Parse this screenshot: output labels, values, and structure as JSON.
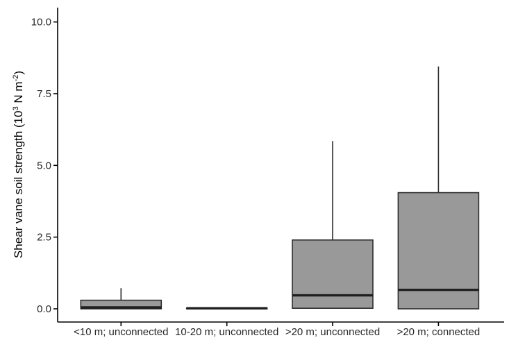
{
  "figure": {
    "background": "#ffffff"
  },
  "chart_data": {
    "type": "boxplot",
    "title": "",
    "xlabel": "",
    "ylabel_text": "Shear vane soil strength (10^3 N m^-2)",
    "ylabel_parts": [
      {
        "text": "Shear vane soil strength ("
      },
      {
        "text": "10"
      },
      {
        "text": "3",
        "sup": true
      },
      {
        "text": " N m"
      },
      {
        "text": "-2",
        "sup": true
      },
      {
        "text": ")"
      }
    ],
    "categories": [
      "<10 m; unconnected",
      "10-20 m; unconnected",
      ">20 m; unconnected",
      ">20 m; connected"
    ],
    "series": [
      {
        "category": "<10 m; unconnected",
        "whisker_low": 0,
        "q1": 0,
        "median": 0.05,
        "q3": 0.3,
        "whisker_high": 0.72
      },
      {
        "category": "10-20 m; unconnected",
        "whisker_low": 0,
        "q1": 0,
        "median": 0.02,
        "q3": 0.03,
        "whisker_high": 0.03
      },
      {
        "category": ">20 m; unconnected",
        "whisker_low": 0.02,
        "q1": 0.02,
        "median": 0.47,
        "q3": 2.4,
        "whisker_high": 5.85
      },
      {
        "category": ">20 m; connected",
        "whisker_low": 0,
        "q1": 0,
        "median": 0.66,
        "q3": 4.05,
        "whisker_high": 8.45
      }
    ],
    "y_ticks": [
      {
        "label": "0.0",
        "value": 0
      },
      {
        "label": "2.5",
        "value": 2.5
      },
      {
        "label": "5.0",
        "value": 5
      },
      {
        "label": "7.5",
        "value": 7.5
      },
      {
        "label": "10.0",
        "value": 10
      }
    ],
    "ylim": [
      -0.46,
      10.52
    ],
    "grid": false,
    "legend": false,
    "colors": {
      "box_fill": "#999999",
      "box_border": "#2e2e2e",
      "median": "#1f1f1f",
      "axis_line": "#000000",
      "tick_label": "#262626",
      "axis_title": "#000000"
    }
  }
}
